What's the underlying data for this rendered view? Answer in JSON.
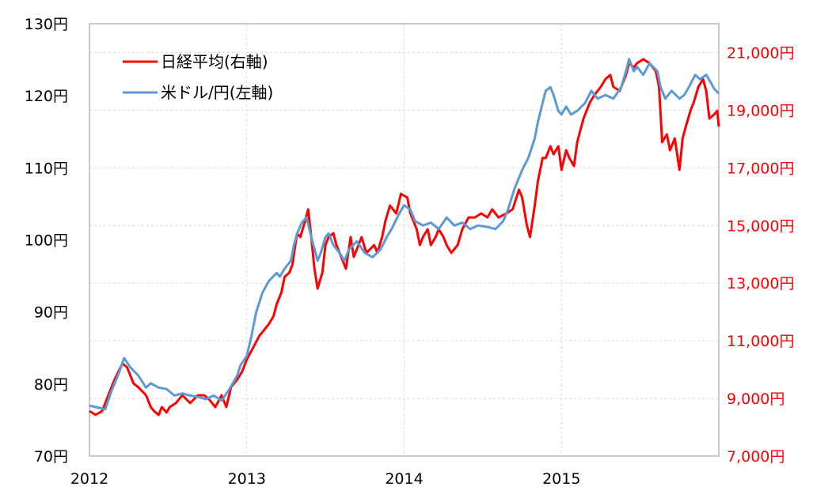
{
  "chart_data": {
    "type": "line",
    "title": "",
    "xlabel": "",
    "x_ticks": [
      "2012",
      "2013",
      "2014",
      "2015"
    ],
    "x_range": [
      2012,
      2016
    ],
    "left_axis": {
      "range": [
        70,
        130
      ],
      "ticks": [
        70,
        80,
        90,
        100,
        110,
        120,
        130
      ],
      "tick_labels": [
        "70円",
        "80円",
        "90円",
        "100円",
        "110円",
        "120円",
        "130円"
      ],
      "color": "#000000"
    },
    "right_axis": {
      "range": [
        7000,
        22000
      ],
      "ticks": [
        7000,
        9000,
        11000,
        13000,
        15000,
        17000,
        19000,
        21000
      ],
      "tick_labels": [
        "7,000円",
        "9,000円",
        "11,000円",
        "13,000円",
        "15,000円",
        "17,000円",
        "19,000円",
        "21,000円"
      ],
      "color": "#ff0000"
    },
    "grid": true,
    "legend_position": "top-left",
    "series": [
      {
        "name": "日経平均(右軸)",
        "axis": "right",
        "color": "#ff0000",
        "points": [
          [
            2012.0,
            8560
          ],
          [
            2012.04,
            8430
          ],
          [
            2012.08,
            8560
          ],
          [
            2012.11,
            8970
          ],
          [
            2012.16,
            9660
          ],
          [
            2012.21,
            10210
          ],
          [
            2012.24,
            10070
          ],
          [
            2012.28,
            9520
          ],
          [
            2012.31,
            9390
          ],
          [
            2012.36,
            9110
          ],
          [
            2012.39,
            8700
          ],
          [
            2012.41,
            8560
          ],
          [
            2012.44,
            8430
          ],
          [
            2012.46,
            8700
          ],
          [
            2012.49,
            8510
          ],
          [
            2012.51,
            8700
          ],
          [
            2012.55,
            8840
          ],
          [
            2012.59,
            9110
          ],
          [
            2012.64,
            8840
          ],
          [
            2012.69,
            9110
          ],
          [
            2012.73,
            9110
          ],
          [
            2012.76,
            8970
          ],
          [
            2012.8,
            8700
          ],
          [
            2012.84,
            9110
          ],
          [
            2012.87,
            8700
          ],
          [
            2012.9,
            9390
          ],
          [
            2012.94,
            9660
          ],
          [
            2012.97,
            9930
          ],
          [
            2013.0,
            10350
          ],
          [
            2013.04,
            10760
          ],
          [
            2013.08,
            11170
          ],
          [
            2013.12,
            11440
          ],
          [
            2013.14,
            11580
          ],
          [
            2013.17,
            11850
          ],
          [
            2013.19,
            12270
          ],
          [
            2013.22,
            12680
          ],
          [
            2013.24,
            13220
          ],
          [
            2013.27,
            13360
          ],
          [
            2013.29,
            13640
          ],
          [
            2013.32,
            14730
          ],
          [
            2013.34,
            14600
          ],
          [
            2013.37,
            15140
          ],
          [
            2013.39,
            15560
          ],
          [
            2013.41,
            14600
          ],
          [
            2013.43,
            13500
          ],
          [
            2013.45,
            12810
          ],
          [
            2013.48,
            13360
          ],
          [
            2013.5,
            14320
          ],
          [
            2013.52,
            14600
          ],
          [
            2013.55,
            14730
          ],
          [
            2013.57,
            14320
          ],
          [
            2013.59,
            14050
          ],
          [
            2013.63,
            13500
          ],
          [
            2013.66,
            14600
          ],
          [
            2013.68,
            13910
          ],
          [
            2013.71,
            14320
          ],
          [
            2013.73,
            14600
          ],
          [
            2013.76,
            14050
          ],
          [
            2013.81,
            14320
          ],
          [
            2013.83,
            14050
          ],
          [
            2013.86,
            14600
          ],
          [
            2013.88,
            15140
          ],
          [
            2013.91,
            15690
          ],
          [
            2013.95,
            15420
          ],
          [
            2013.98,
            16100
          ],
          [
            2014.02,
            15970
          ],
          [
            2014.04,
            15420
          ],
          [
            2014.08,
            14870
          ],
          [
            2014.1,
            14320
          ],
          [
            2014.12,
            14600
          ],
          [
            2014.15,
            14870
          ],
          [
            2014.17,
            14320
          ],
          [
            2014.2,
            14600
          ],
          [
            2014.22,
            14870
          ],
          [
            2014.25,
            14600
          ],
          [
            2014.27,
            14320
          ],
          [
            2014.3,
            14050
          ],
          [
            2014.34,
            14320
          ],
          [
            2014.37,
            14870
          ],
          [
            2014.41,
            15280
          ],
          [
            2014.45,
            15280
          ],
          [
            2014.49,
            15420
          ],
          [
            2014.53,
            15280
          ],
          [
            2014.56,
            15560
          ],
          [
            2014.6,
            15280
          ],
          [
            2014.65,
            15420
          ],
          [
            2014.69,
            15560
          ],
          [
            2014.73,
            16240
          ],
          [
            2014.75,
            15970
          ],
          [
            2014.78,
            15010
          ],
          [
            2014.8,
            14600
          ],
          [
            2014.83,
            15690
          ],
          [
            2014.85,
            16520
          ],
          [
            2014.88,
            17340
          ],
          [
            2014.9,
            17340
          ],
          [
            2014.93,
            17750
          ],
          [
            2014.95,
            17470
          ],
          [
            2014.98,
            17750
          ],
          [
            2015.0,
            16930
          ],
          [
            2015.03,
            17610
          ],
          [
            2015.05,
            17340
          ],
          [
            2015.08,
            17060
          ],
          [
            2015.1,
            17890
          ],
          [
            2015.14,
            18710
          ],
          [
            2015.18,
            19260
          ],
          [
            2015.21,
            19530
          ],
          [
            2015.25,
            19810
          ],
          [
            2015.28,
            20080
          ],
          [
            2015.31,
            20220
          ],
          [
            2015.33,
            19810
          ],
          [
            2015.37,
            19670
          ],
          [
            2015.41,
            20220
          ],
          [
            2015.43,
            20630
          ],
          [
            2015.46,
            20490
          ],
          [
            2015.48,
            20630
          ],
          [
            2015.52,
            20770
          ],
          [
            2015.56,
            20630
          ],
          [
            2015.6,
            20350
          ],
          [
            2015.62,
            19810
          ],
          [
            2015.64,
            17890
          ],
          [
            2015.67,
            18160
          ],
          [
            2015.69,
            17610
          ],
          [
            2015.72,
            18020
          ],
          [
            2015.75,
            16930
          ],
          [
            2015.77,
            18020
          ],
          [
            2015.79,
            18430
          ],
          [
            2015.82,
            18980
          ],
          [
            2015.84,
            19260
          ],
          [
            2015.87,
            19810
          ],
          [
            2015.9,
            20080
          ],
          [
            2015.92,
            19670
          ],
          [
            2015.94,
            18710
          ],
          [
            2015.97,
            18850
          ],
          [
            2015.99,
            18980
          ],
          [
            2016.0,
            18430
          ]
        ]
      },
      {
        "name": "米ドル/円(左軸)",
        "axis": "left",
        "color": "#5b9bd5",
        "points": [
          [
            2012.0,
            77.0
          ],
          [
            2012.06,
            76.7
          ],
          [
            2012.1,
            76.5
          ],
          [
            2012.14,
            79.0
          ],
          [
            2012.19,
            81.7
          ],
          [
            2012.22,
            83.6
          ],
          [
            2012.26,
            82.3
          ],
          [
            2012.31,
            81.2
          ],
          [
            2012.36,
            79.5
          ],
          [
            2012.39,
            80.1
          ],
          [
            2012.44,
            79.5
          ],
          [
            2012.49,
            79.3
          ],
          [
            2012.54,
            78.4
          ],
          [
            2012.59,
            78.7
          ],
          [
            2012.64,
            78.4
          ],
          [
            2012.69,
            78.2
          ],
          [
            2012.74,
            77.9
          ],
          [
            2012.79,
            78.4
          ],
          [
            2012.84,
            77.7
          ],
          [
            2012.89,
            79.3
          ],
          [
            2012.94,
            81.2
          ],
          [
            2012.96,
            82.6
          ],
          [
            2013.0,
            83.9
          ],
          [
            2013.03,
            86.7
          ],
          [
            2013.06,
            90.0
          ],
          [
            2013.1,
            92.7
          ],
          [
            2013.14,
            94.3
          ],
          [
            2013.19,
            95.4
          ],
          [
            2013.21,
            94.9
          ],
          [
            2013.24,
            96.0
          ],
          [
            2013.28,
            97.1
          ],
          [
            2013.3,
            99.3
          ],
          [
            2013.32,
            100.9
          ],
          [
            2013.35,
            102.4
          ],
          [
            2013.38,
            103.1
          ],
          [
            2013.41,
            100.4
          ],
          [
            2013.45,
            97.1
          ],
          [
            2013.47,
            98.2
          ],
          [
            2013.5,
            100.4
          ],
          [
            2013.52,
            100.9
          ],
          [
            2013.55,
            99.3
          ],
          [
            2013.59,
            98.2
          ],
          [
            2013.62,
            97.1
          ],
          [
            2013.65,
            98.7
          ],
          [
            2013.7,
            99.8
          ],
          [
            2013.75,
            98.2
          ],
          [
            2013.8,
            97.6
          ],
          [
            2013.85,
            98.7
          ],
          [
            2013.89,
            100.4
          ],
          [
            2013.92,
            101.5
          ],
          [
            2013.97,
            103.7
          ],
          [
            2014.0,
            104.8
          ],
          [
            2014.04,
            104.2
          ],
          [
            2014.07,
            102.6
          ],
          [
            2014.12,
            102.0
          ],
          [
            2014.17,
            102.4
          ],
          [
            2014.22,
            101.5
          ],
          [
            2014.27,
            103.1
          ],
          [
            2014.32,
            102.0
          ],
          [
            2014.37,
            102.4
          ],
          [
            2014.42,
            101.5
          ],
          [
            2014.47,
            102.0
          ],
          [
            2014.53,
            101.8
          ],
          [
            2014.58,
            101.5
          ],
          [
            2014.63,
            102.6
          ],
          [
            2014.66,
            104.2
          ],
          [
            2014.7,
            107.0
          ],
          [
            2014.75,
            109.7
          ],
          [
            2014.79,
            111.4
          ],
          [
            2014.83,
            114.1
          ],
          [
            2014.85,
            116.3
          ],
          [
            2014.88,
            119.0
          ],
          [
            2014.9,
            120.7
          ],
          [
            2014.93,
            121.2
          ],
          [
            2014.95,
            120.1
          ],
          [
            2014.98,
            117.9
          ],
          [
            2015.0,
            117.4
          ],
          [
            2015.03,
            118.5
          ],
          [
            2015.06,
            117.4
          ],
          [
            2015.1,
            117.9
          ],
          [
            2015.15,
            119.0
          ],
          [
            2015.19,
            120.7
          ],
          [
            2015.23,
            119.6
          ],
          [
            2015.28,
            120.1
          ],
          [
            2015.33,
            119.6
          ],
          [
            2015.38,
            121.2
          ],
          [
            2015.41,
            123.4
          ],
          [
            2015.43,
            125.1
          ],
          [
            2015.46,
            123.4
          ],
          [
            2015.48,
            124.0
          ],
          [
            2015.52,
            122.9
          ],
          [
            2015.56,
            124.5
          ],
          [
            2015.61,
            123.4
          ],
          [
            2015.63,
            121.2
          ],
          [
            2015.66,
            119.6
          ],
          [
            2015.7,
            120.7
          ],
          [
            2015.75,
            119.6
          ],
          [
            2015.78,
            120.1
          ],
          [
            2015.81,
            121.2
          ],
          [
            2015.85,
            122.9
          ],
          [
            2015.88,
            122.3
          ],
          [
            2015.92,
            122.9
          ],
          [
            2015.95,
            121.8
          ],
          [
            2015.97,
            121.0
          ],
          [
            2016.0,
            120.3
          ]
        ]
      }
    ]
  }
}
